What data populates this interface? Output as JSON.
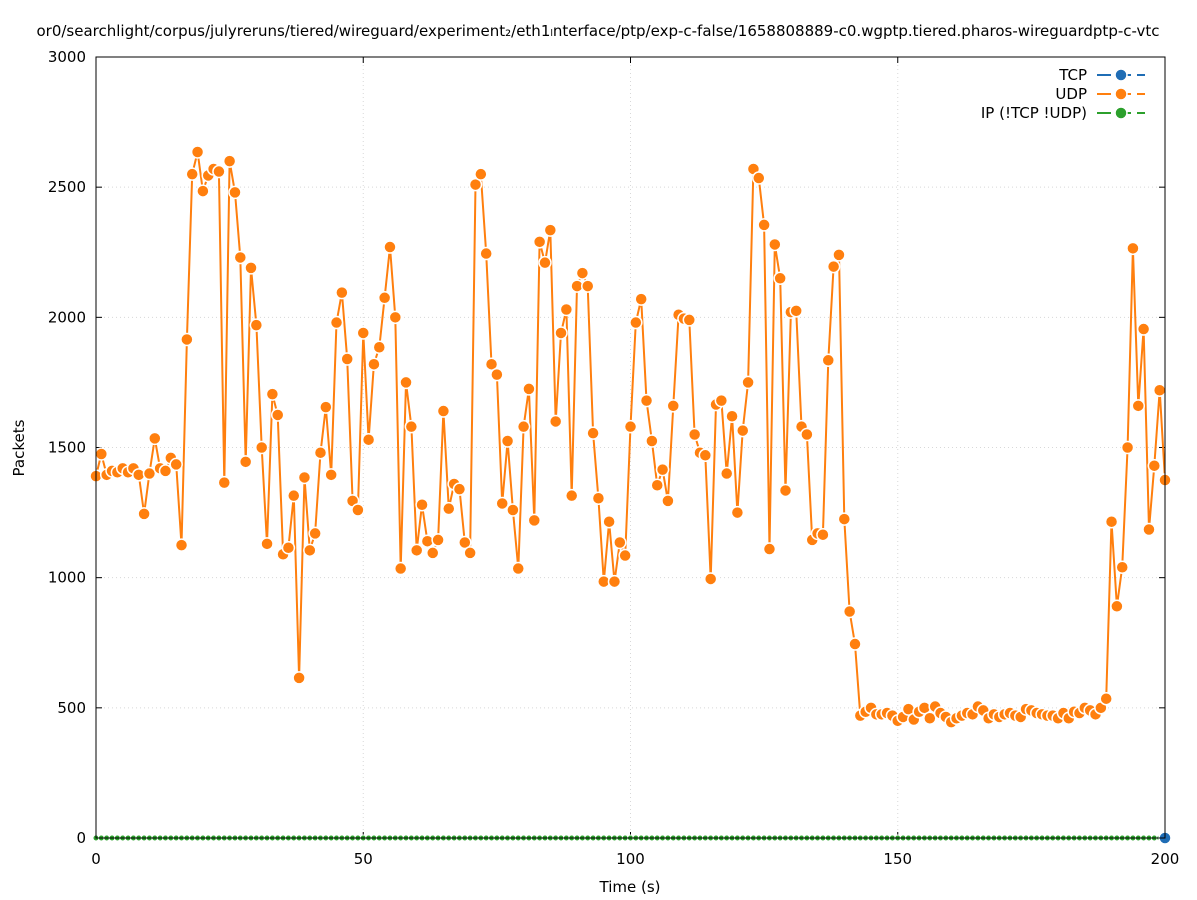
{
  "chart_data": {
    "type": "line",
    "title": "or0/searchlight/corpus/julyreruns/tiered/wireguard/experiment₂/eth1ₗnterface/ptp/exp-c-false/1658808889-c0.wgptp.tiered.pharos-wireguardptp-c-vtc",
    "xlabel": "Time (s)",
    "ylabel": "Packets",
    "xlim": [
      0,
      200
    ],
    "ylim": [
      0,
      3000
    ],
    "x_ticks": [
      "0",
      "50",
      "100",
      "150",
      "200"
    ],
    "y_ticks": [
      "0",
      "500",
      "1000",
      "1500",
      "2000",
      "2500",
      "3000"
    ],
    "grid": true,
    "legend_position": "top-right",
    "series": [
      {
        "name": "TCP",
        "color": "#1f6db5",
        "x": [
          200
        ],
        "y": [
          0
        ]
      },
      {
        "name": "UDP",
        "color": "#ff7f0e",
        "x": [
          0,
          1,
          2,
          3,
          4,
          5,
          6,
          7,
          8,
          9,
          10,
          11,
          12,
          13,
          14,
          15,
          16,
          17,
          18,
          19,
          20,
          21,
          22,
          23,
          24,
          25,
          26,
          27,
          28,
          29,
          30,
          31,
          32,
          33,
          34,
          35,
          36,
          37,
          38,
          39,
          40,
          41,
          42,
          43,
          44,
          45,
          46,
          47,
          48,
          49,
          50,
          51,
          52,
          53,
          54,
          55,
          56,
          57,
          58,
          59,
          60,
          61,
          62,
          63,
          64,
          65,
          66,
          67,
          68,
          69,
          70,
          71,
          72,
          73,
          74,
          75,
          76,
          77,
          78,
          79,
          80,
          81,
          82,
          83,
          84,
          85,
          86,
          87,
          88,
          89,
          90,
          91,
          92,
          93,
          94,
          95,
          96,
          97,
          98,
          99,
          100,
          101,
          102,
          103,
          104,
          105,
          106,
          107,
          108,
          109,
          110,
          111,
          112,
          113,
          114,
          115,
          116,
          117,
          118,
          119,
          120,
          121,
          122,
          123,
          124,
          125,
          126,
          127,
          128,
          129,
          130,
          131,
          132,
          133,
          134,
          135,
          136,
          137,
          138,
          139,
          140,
          141,
          142,
          143,
          144,
          145,
          146,
          147,
          148,
          149,
          150,
          151,
          152,
          153,
          154,
          155,
          156,
          157,
          158,
          159,
          160,
          161,
          162,
          163,
          164,
          165,
          166,
          167,
          168,
          169,
          170,
          171,
          172,
          173,
          174,
          175,
          176,
          177,
          178,
          179,
          180,
          181,
          182,
          183,
          184,
          185,
          186,
          187,
          188,
          189,
          190,
          191,
          192,
          193,
          194,
          195,
          196,
          197,
          198,
          199,
          200
        ],
        "y": [
          1390,
          1475,
          1395,
          1410,
          1405,
          1420,
          1405,
          1420,
          1395,
          1245,
          1400,
          1535,
          1420,
          1410,
          1460,
          1435,
          1125,
          1915,
          2550,
          2635,
          2485,
          2545,
          2570,
          2560,
          1365,
          2600,
          2480,
          2230,
          1445,
          2190,
          1970,
          1500,
          1130,
          1705,
          1625,
          1090,
          1115,
          1315,
          615,
          1385,
          1105,
          1170,
          1480,
          1655,
          1395,
          1980,
          2095,
          1840,
          1295,
          1260,
          1940,
          1530,
          1820,
          1885,
          2075,
          2270,
          2000,
          1035,
          1750,
          1580,
          1105,
          1280,
          1140,
          1095,
          1145,
          1640,
          1265,
          1360,
          1340,
          1135,
          1095,
          2510,
          2550,
          2245,
          1820,
          1780,
          1285,
          1525,
          1260,
          1035,
          1580,
          1725,
          1220,
          2290,
          2210,
          2335,
          1600,
          1940,
          2030,
          1315,
          2120,
          2170,
          2120,
          1555,
          1305,
          985,
          1215,
          985,
          1135,
          1085,
          1580,
          1980,
          2070,
          1680,
          1525,
          1355,
          1415,
          1295,
          1660,
          2010,
          1995,
          1990,
          1550,
          1480,
          1470,
          995,
          1665,
          1680,
          1400,
          1620,
          1250,
          1565,
          1750,
          2570,
          2535,
          2355,
          1110,
          2280,
          2150,
          1335,
          2020,
          2025,
          1580,
          1550,
          1145,
          1170,
          1165,
          1835,
          2195,
          2240,
          1225,
          870,
          745,
          470,
          485,
          500,
          475,
          475,
          480,
          470,
          450,
          465,
          495,
          455,
          485,
          500,
          460,
          505,
          480,
          465,
          445,
          460,
          470,
          480,
          475,
          505,
          490,
          460,
          475,
          465,
          475,
          480,
          470,
          465,
          495,
          490,
          480,
          475,
          470,
          470,
          460,
          480,
          460,
          485,
          480,
          500,
          490,
          475,
          500,
          535,
          1215,
          890,
          1040,
          1500,
          2265,
          1660,
          1955,
          1185,
          1430,
          1720,
          1375
        ]
      },
      {
        "name": "IP (!TCP  !UDP)",
        "color": "#2ca02c",
        "x": [
          0,
          1,
          2,
          3,
          4,
          5,
          6,
          7,
          8,
          9,
          10,
          11,
          12,
          13,
          14,
          15,
          16,
          17,
          18,
          19,
          20,
          21,
          22,
          23,
          24,
          25,
          26,
          27,
          28,
          29,
          30,
          31,
          32,
          33,
          34,
          35,
          36,
          37,
          38,
          39,
          40,
          41,
          42,
          43,
          44,
          45,
          46,
          47,
          48,
          49,
          50,
          51,
          52,
          53,
          54,
          55,
          56,
          57,
          58,
          59,
          60,
          61,
          62,
          63,
          64,
          65,
          66,
          67,
          68,
          69,
          70,
          71,
          72,
          73,
          74,
          75,
          76,
          77,
          78,
          79,
          80,
          81,
          82,
          83,
          84,
          85,
          86,
          87,
          88,
          89,
          90,
          91,
          92,
          93,
          94,
          95,
          96,
          97,
          98,
          99,
          100,
          101,
          102,
          103,
          104,
          105,
          106,
          107,
          108,
          109,
          110,
          111,
          112,
          113,
          114,
          115,
          116,
          117,
          118,
          119,
          120,
          121,
          122,
          123,
          124,
          125,
          126,
          127,
          128,
          129,
          130,
          131,
          132,
          133,
          134,
          135,
          136,
          137,
          138,
          139,
          140,
          141,
          142,
          143,
          144,
          145,
          146,
          147,
          148,
          149,
          150,
          151,
          152,
          153,
          154,
          155,
          156,
          157,
          158,
          159,
          160,
          161,
          162,
          163,
          164,
          165,
          166,
          167,
          168,
          169,
          170,
          171,
          172,
          173,
          174,
          175,
          176,
          177,
          178,
          179,
          180,
          181,
          182,
          183,
          184,
          185,
          186,
          187,
          188,
          189,
          190,
          191,
          192,
          193,
          194,
          195,
          196,
          197,
          198,
          199,
          200
        ],
        "y": [
          0,
          0,
          0,
          0,
          0,
          0,
          0,
          0,
          0,
          0,
          0,
          0,
          0,
          0,
          0,
          0,
          0,
          0,
          0,
          0,
          0,
          0,
          0,
          0,
          0,
          0,
          0,
          0,
          0,
          0,
          0,
          0,
          0,
          0,
          0,
          0,
          0,
          0,
          0,
          0,
          0,
          0,
          0,
          0,
          0,
          0,
          0,
          0,
          0,
          0,
          0,
          0,
          0,
          0,
          0,
          0,
          0,
          0,
          0,
          0,
          0,
          0,
          0,
          0,
          0,
          0,
          0,
          0,
          0,
          0,
          0,
          0,
          0,
          0,
          0,
          0,
          0,
          0,
          0,
          0,
          0,
          0,
          0,
          0,
          0,
          0,
          0,
          0,
          0,
          0,
          0,
          0,
          0,
          0,
          0,
          0,
          0,
          0,
          0,
          0,
          0,
          0,
          0,
          0,
          0,
          0,
          0,
          0,
          0,
          0,
          0,
          0,
          0,
          0,
          0,
          0,
          0,
          0,
          0,
          0,
          0,
          0,
          0,
          0,
          0,
          0,
          0,
          0,
          0,
          0,
          0,
          0,
          0,
          0,
          0,
          0,
          0,
          0,
          0,
          0,
          0,
          0,
          0,
          0,
          0,
          0,
          0,
          0,
          0,
          0,
          0,
          0,
          0,
          0,
          0,
          0,
          0,
          0,
          0,
          0,
          0,
          0,
          0,
          0,
          0,
          0,
          0,
          0,
          0,
          0,
          0,
          0,
          0,
          0,
          0,
          0,
          0,
          0,
          0,
          0,
          0,
          0,
          0,
          0,
          0,
          0,
          0,
          0,
          0,
          0,
          0,
          0,
          0,
          0,
          0,
          0,
          0,
          0,
          0,
          0,
          0
        ]
      }
    ]
  }
}
